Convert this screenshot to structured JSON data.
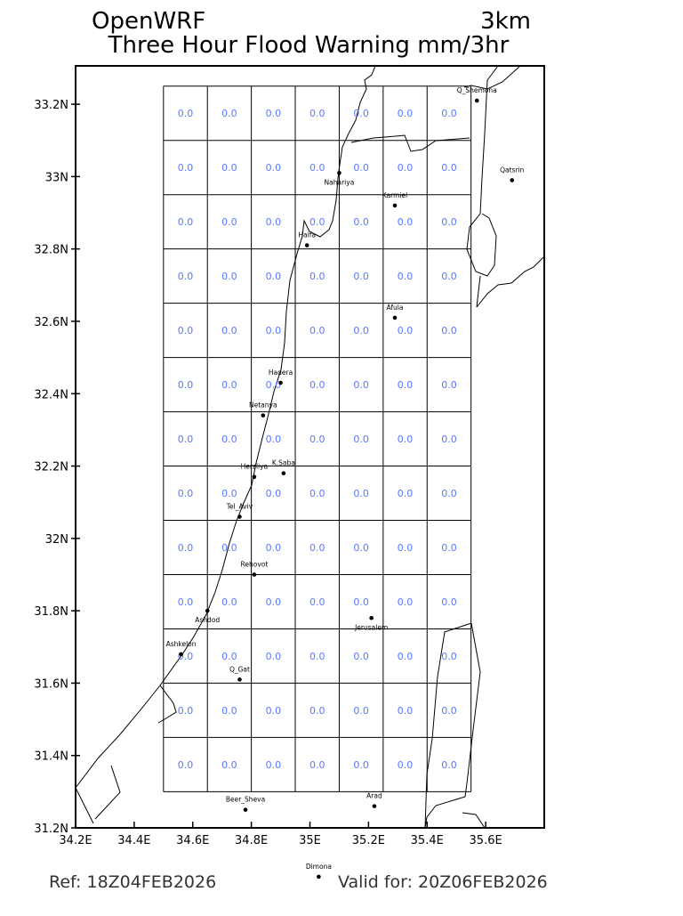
{
  "header": {
    "model": "OpenWRF",
    "resolution": "3km",
    "title": "Three Hour Flood Warning mm/3hr"
  },
  "footer": {
    "ref": "Ref: 18Z04FEB2026",
    "valid": "Valid for: 20Z06FEB2026"
  },
  "map": {
    "lon_range": [
      34.2,
      35.8
    ],
    "lat_range": [
      31.2,
      33.306
    ],
    "x_ticks": [
      {
        "value": 34.2,
        "label": "34.2E"
      },
      {
        "value": 34.4,
        "label": "34.4E"
      },
      {
        "value": 34.6,
        "label": "34.6E"
      },
      {
        "value": 34.8,
        "label": "34.8E"
      },
      {
        "value": 35.0,
        "label": "35E"
      },
      {
        "value": 35.2,
        "label": "35.2E"
      },
      {
        "value": 35.4,
        "label": "35.4E"
      },
      {
        "value": 35.6,
        "label": "35.6E"
      }
    ],
    "y_ticks": [
      {
        "value": 31.2,
        "label": "31.2N"
      },
      {
        "value": 31.4,
        "label": "31.4N"
      },
      {
        "value": 31.6,
        "label": "31.6N"
      },
      {
        "value": 31.8,
        "label": "31.8N"
      },
      {
        "value": 32.0,
        "label": "32N"
      },
      {
        "value": 32.2,
        "label": "32.2N"
      },
      {
        "value": 32.4,
        "label": "32.4N"
      },
      {
        "value": 32.6,
        "label": "32.6N"
      },
      {
        "value": 32.8,
        "label": "32.8N"
      },
      {
        "value": 33.0,
        "label": "33N"
      },
      {
        "value": 33.2,
        "label": "33.2N"
      }
    ],
    "grid": {
      "lon_start": 34.5,
      "lat_start": 31.3,
      "step_deg": 0.15,
      "cols": 7,
      "rows": 13,
      "value_color": "#5a78ff",
      "values": [
        [
          "0.0",
          "0.0",
          "0.0",
          "0.0",
          "0.0",
          "0.0",
          "0.0"
        ],
        [
          "0.0",
          "0.0",
          "0.0",
          "0.0",
          "0.0",
          "0.0",
          "0.0"
        ],
        [
          "0.0",
          "0.0",
          "0.0",
          "0.0",
          "0.0",
          "0.0",
          "0.0"
        ],
        [
          "0.0",
          "0.0",
          "0.0",
          "0.0",
          "0.0",
          "0.0",
          "0.0"
        ],
        [
          "0.0",
          "0.0",
          "0.0",
          "0.0",
          "0.0",
          "0.0",
          "0.0"
        ],
        [
          "0.0",
          "0.0",
          "0.0",
          "0.0",
          "0.0",
          "0.0",
          "0.0"
        ],
        [
          "0.0",
          "0.0",
          "0.0",
          "0.0",
          "0.0",
          "0.0",
          "0.0"
        ],
        [
          "0.0",
          "0.0",
          "0.0",
          "0.0",
          "0.0",
          "0.0",
          "0.0"
        ],
        [
          "0.0",
          "0.0",
          "0.0",
          "0.0",
          "0.0",
          "0.0",
          "0.0"
        ],
        [
          "0.0",
          "0.0",
          "0.0",
          "0.0",
          "0.0",
          "0.0",
          "0.0"
        ],
        [
          "0.0",
          "0.0",
          "0.0",
          "0.0",
          "0.0",
          "0.0",
          "0.0"
        ],
        [
          "0.0",
          "0.0",
          "0.0",
          "0.0",
          "0.0",
          "0.0",
          "0.0"
        ],
        [
          "0.0",
          "0.0",
          "0.0",
          "0.0",
          "0.0",
          "0.0",
          "0.0"
        ]
      ]
    },
    "cities": [
      {
        "name": "Q_Shemona",
        "lon": 35.57,
        "lat": 33.21
      },
      {
        "name": "Qatsrin",
        "lon": 35.69,
        "lat": 32.99
      },
      {
        "name": "Nahariya",
        "lon": 35.1,
        "lat": 33.01
      },
      {
        "name": "Karmiel",
        "lon": 35.29,
        "lat": 32.92
      },
      {
        "name": "Haifa",
        "lon": 34.99,
        "lat": 32.81
      },
      {
        "name": "Afula",
        "lon": 35.29,
        "lat": 32.61
      },
      {
        "name": "Hadera",
        "lon": 34.9,
        "lat": 32.43
      },
      {
        "name": "Netanya",
        "lon": 34.84,
        "lat": 32.34
      },
      {
        "name": "Herzliya",
        "lon": 34.81,
        "lat": 32.17
      },
      {
        "name": "K.Saba",
        "lon": 34.91,
        "lat": 32.18
      },
      {
        "name": "Tel_Aviv",
        "lon": 34.76,
        "lat": 32.06
      },
      {
        "name": "Rehovot",
        "lon": 34.81,
        "lat": 31.9
      },
      {
        "name": "Ashdod",
        "lon": 34.65,
        "lat": 31.8
      },
      {
        "name": "Ashkelon",
        "lon": 34.56,
        "lat": 31.68
      },
      {
        "name": "Q_Gat",
        "lon": 34.76,
        "lat": 31.61
      },
      {
        "name": "Jerusalem",
        "lon": 35.21,
        "lat": 31.78
      },
      {
        "name": "Beer_Sheva",
        "lon": 34.78,
        "lat": 31.25
      },
      {
        "name": "Arad",
        "lon": 35.22,
        "lat": 31.26
      },
      {
        "name": "Dimona",
        "lon": 35.03,
        "lat": 31.065
      }
    ]
  }
}
